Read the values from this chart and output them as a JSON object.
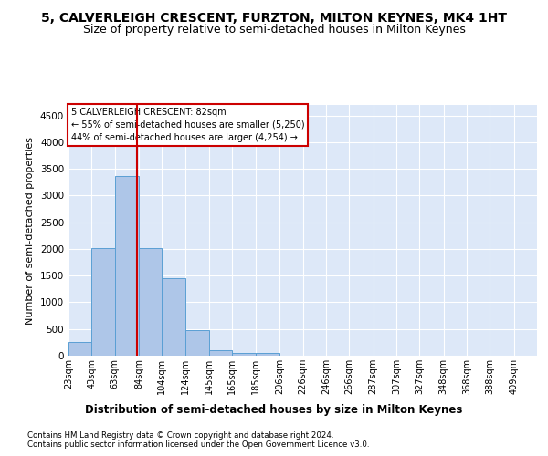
{
  "title1": "5, CALVERLEIGH CRESCENT, FURZTON, MILTON KEYNES, MK4 1HT",
  "title2": "Size of property relative to semi-detached houses in Milton Keynes",
  "xlabel": "Distribution of semi-detached houses by size in Milton Keynes",
  "ylabel": "Number of semi-detached properties",
  "footnote1": "Contains HM Land Registry data © Crown copyright and database right 2024.",
  "footnote2": "Contains public sector information licensed under the Open Government Licence v3.0.",
  "annotation_title": "5 CALVERLEIGH CRESCENT: 82sqm",
  "annotation_line1": "← 55% of semi-detached houses are smaller (5,250)",
  "annotation_line2": "44% of semi-detached houses are larger (4,254) →",
  "property_size": 82,
  "bar_edges": [
    23,
    43,
    63,
    84,
    104,
    124,
    145,
    165,
    185,
    206,
    226,
    246,
    266,
    287,
    307,
    327,
    348,
    368,
    388,
    409,
    429
  ],
  "bar_heights": [
    250,
    2020,
    3360,
    2010,
    1460,
    480,
    100,
    55,
    55,
    0,
    0,
    0,
    0,
    0,
    0,
    0,
    0,
    0,
    0,
    0
  ],
  "bar_color": "#aec6e8",
  "bar_edge_color": "#5a9fd4",
  "vline_color": "#cc0000",
  "vline_x": 82,
  "ylim": [
    0,
    4700
  ],
  "yticks": [
    0,
    500,
    1000,
    1500,
    2000,
    2500,
    3000,
    3500,
    4000,
    4500
  ],
  "bg_color": "#dde8f8",
  "title1_fontsize": 10,
  "title2_fontsize": 9,
  "xlabel_fontsize": 8.5,
  "ylabel_fontsize": 8,
  "annot_box_color": "#ffffff",
  "annot_box_edge": "#cc0000",
  "tick_label_fontsize": 7
}
